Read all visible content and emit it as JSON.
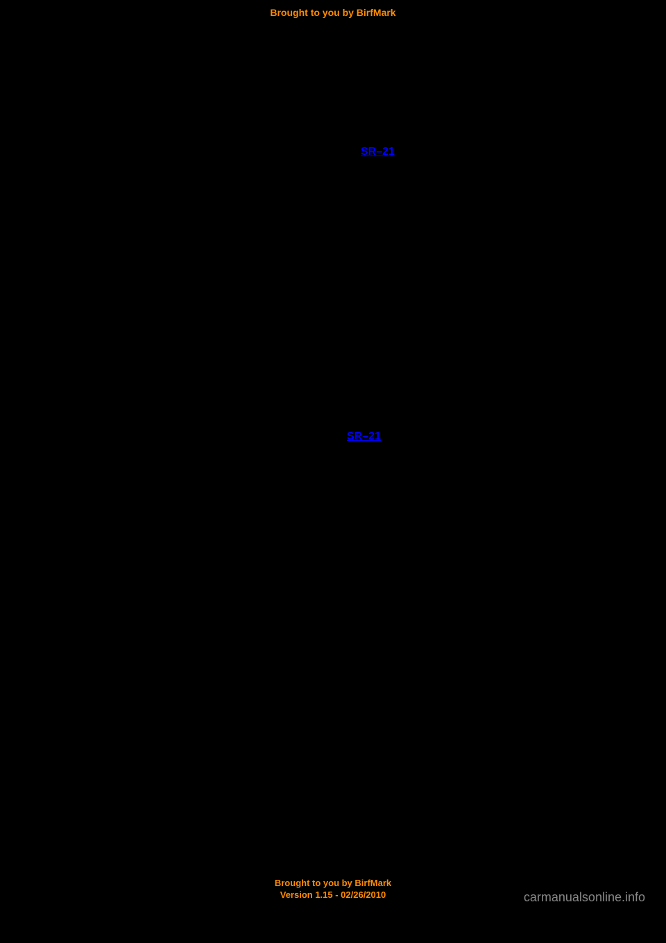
{
  "header": {
    "text": "Brought to you by BirfMark"
  },
  "links": {
    "link1": "SR–21",
    "link2": "SR–21"
  },
  "footer": {
    "line1": "Brought to you by BirfMark",
    "line2": "Version 1.15 - 02/26/2010"
  },
  "watermark": {
    "text": "carmanualsonline.info"
  },
  "colors": {
    "background": "#000000",
    "banner_text": "#ff8c00",
    "link_text": "#0000ff",
    "watermark_text": "#c0c0c0"
  }
}
